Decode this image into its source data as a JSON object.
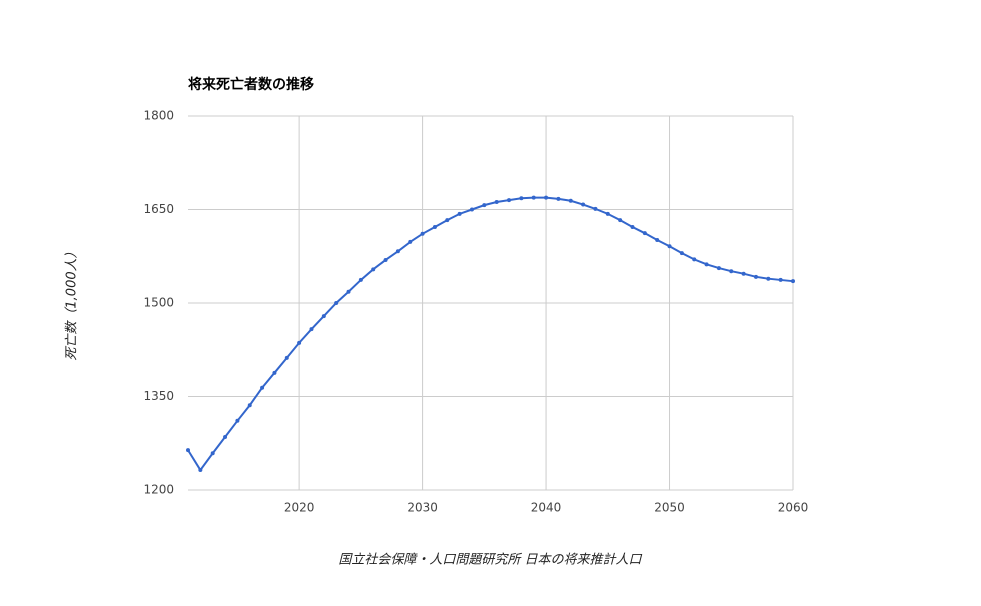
{
  "chart_data": {
    "type": "line",
    "title": "将来死亡者数の推移",
    "y_label": "死亡数（1,000人）",
    "source": "国立社会保障・人口問題研究所 日本の将来推計人口",
    "x": [
      2011,
      2012,
      2013,
      2014,
      2015,
      2016,
      2017,
      2018,
      2019,
      2020,
      2021,
      2022,
      2023,
      2024,
      2025,
      2026,
      2027,
      2028,
      2029,
      2030,
      2031,
      2032,
      2033,
      2034,
      2035,
      2036,
      2037,
      2038,
      2039,
      2040,
      2041,
      2042,
      2043,
      2044,
      2045,
      2046,
      2047,
      2048,
      2049,
      2050,
      2051,
      2052,
      2053,
      2054,
      2055,
      2056,
      2057,
      2058,
      2059,
      2060
    ],
    "series": [
      {
        "name": "死亡数",
        "color": "#3366cc",
        "values": [
          1264,
          1232,
          1259,
          1285,
          1311,
          1336,
          1364,
          1388,
          1412,
          1436,
          1458,
          1479,
          1500,
          1518,
          1537,
          1554,
          1569,
          1583,
          1598,
          1611,
          1622,
          1633,
          1643,
          1650,
          1657,
          1662,
          1665,
          1668,
          1669,
          1669,
          1667,
          1664,
          1658,
          1651,
          1643,
          1633,
          1622,
          1612,
          1601,
          1591,
          1580,
          1570,
          1562,
          1556,
          1551,
          1547,
          1542,
          1539,
          1537,
          1535
        ]
      }
    ],
    "xlim": [
      2011,
      2060
    ],
    "xticks": [
      2020,
      2030,
      2040,
      2050,
      2060
    ],
    "ylim": [
      1200,
      1800
    ],
    "yticks": [
      1200,
      1350,
      1500,
      1650,
      1800
    ],
    "grid": true
  }
}
